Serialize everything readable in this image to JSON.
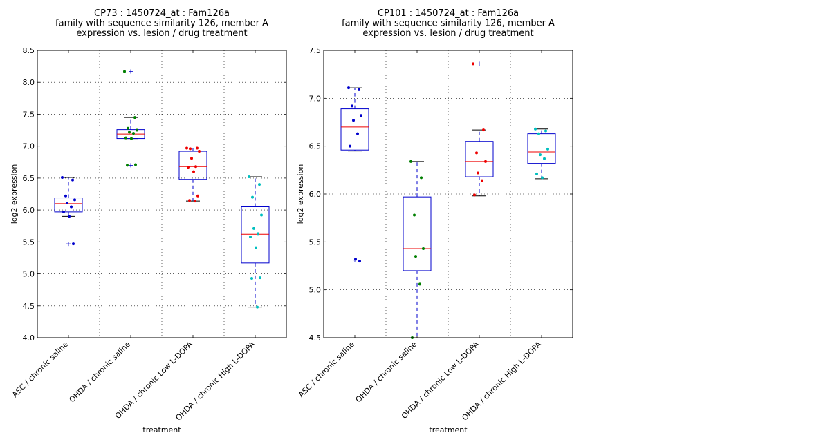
{
  "chart_data": [
    {
      "type": "box",
      "title_lines": [
        "CP73 : 1450724_at : Fam126a",
        "family with sequence similarity 126, member A",
        "expression vs. lesion / drug treatment"
      ],
      "xlabel": "treatment",
      "ylabel": "log2 expression",
      "ylim": [
        4.0,
        8.5
      ],
      "yticks": [
        "4.0",
        "4.5",
        "5.0",
        "5.5",
        "6.0",
        "6.5",
        "7.0",
        "7.5",
        "8.0",
        "8.5"
      ],
      "grid": true,
      "categories": [
        "ASC / chronic saline",
        "OHDA / chronic saline",
        "OHDA / chronic Low L-DOPA",
        "OHDA / chronic High L-DOPA"
      ],
      "point_colors": [
        "#0000cc",
        "#007f00",
        "#ee0000",
        "#00bfbf"
      ],
      "boxes": [
        {
          "q1": 5.97,
          "median": 6.1,
          "q3": 6.19,
          "whisker_low": 5.9,
          "whisker_high": 6.51,
          "outliers": [
            5.47
          ]
        },
        {
          "q1": 7.12,
          "median": 7.19,
          "q3": 7.26,
          "whisker_low": 7.12,
          "whisker_high": 7.45,
          "outliers": [
            8.17,
            6.7
          ]
        },
        {
          "q1": 6.48,
          "median": 6.68,
          "q3": 6.92,
          "whisker_low": 6.14,
          "whisker_high": 6.97,
          "outliers": []
        },
        {
          "q1": 5.17,
          "median": 5.62,
          "q3": 6.05,
          "whisker_low": 4.48,
          "whisker_high": 6.52,
          "outliers": []
        }
      ],
      "points": [
        [
          6.51,
          6.47,
          6.22,
          6.16,
          6.11,
          6.05,
          5.97,
          5.9,
          5.47
        ],
        [
          8.17,
          7.45,
          7.28,
          7.25,
          7.22,
          7.2,
          7.13,
          7.12,
          6.71,
          6.7
        ],
        [
          6.97,
          6.97,
          6.96,
          6.92,
          6.81,
          6.68,
          6.67,
          6.6,
          6.22,
          6.15,
          6.14
        ],
        [
          6.52,
          6.4,
          6.2,
          5.92,
          5.71,
          5.63,
          5.58,
          5.41,
          4.94,
          4.93,
          4.48
        ]
      ]
    },
    {
      "type": "box",
      "title_lines": [
        "CP101 : 1450724_at : Fam126a",
        "family with sequence similarity 126, member A",
        "expression vs. lesion / drug treatment"
      ],
      "xlabel": "treatment",
      "ylabel": "log2 expression",
      "ylim": [
        4.5,
        7.5
      ],
      "yticks": [
        "4.5",
        "5.0",
        "5.5",
        "6.0",
        "6.5",
        "7.0",
        "7.5"
      ],
      "grid": true,
      "categories": [
        "ASC / chronic saline",
        "OHDA / chronic saline",
        "OHDA / chronic Low L-DOPA",
        "OHDA / chronic High L-DOPA"
      ],
      "point_colors": [
        "#0000cc",
        "#007f00",
        "#ee0000",
        "#00bfbf"
      ],
      "boxes": [
        {
          "q1": 6.46,
          "median": 6.7,
          "q3": 6.89,
          "whisker_low": 6.45,
          "whisker_high": 7.11,
          "outliers": [
            5.31
          ]
        },
        {
          "q1": 5.2,
          "median": 5.43,
          "q3": 5.97,
          "whisker_low": 4.5,
          "whisker_high": 6.34,
          "outliers": []
        },
        {
          "q1": 6.18,
          "median": 6.34,
          "q3": 6.55,
          "whisker_low": 5.98,
          "whisker_high": 6.67,
          "outliers": [
            7.36
          ]
        },
        {
          "q1": 6.32,
          "median": 6.44,
          "q3": 6.63,
          "whisker_low": 6.16,
          "whisker_high": 6.68,
          "outliers": []
        }
      ],
      "points": [
        [
          7.11,
          7.09,
          6.92,
          6.82,
          6.77,
          6.63,
          6.5,
          5.32,
          5.3
        ],
        [
          6.34,
          6.17,
          5.78,
          5.43,
          5.35,
          5.06,
          4.5
        ],
        [
          7.36,
          6.67,
          6.43,
          6.34,
          6.22,
          6.14,
          5.99
        ],
        [
          6.68,
          6.66,
          6.63,
          6.47,
          6.41,
          6.37,
          6.21,
          6.17
        ]
      ]
    }
  ]
}
